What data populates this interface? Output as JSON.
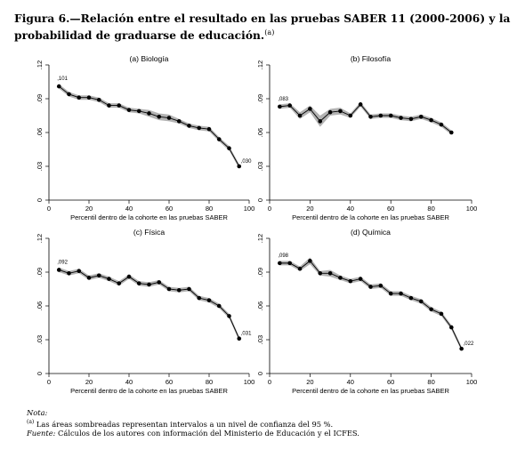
{
  "figure": {
    "title_main": "Figura 6.—Relación entre el resultado en las pruebas SABER 11 (2000-2006) y la probabilidad de graduarse de educación.",
    "title_note_ref": "(a)"
  },
  "notes": {
    "nota_label": "Nota:",
    "note_ref": "(a)",
    "note_text": "Las áreas sombreadas representan intervalos a un nivel de confianza del 95 %.",
    "fuente_label": "Fuente:",
    "fuente_text": "Cálculos de los autores con información del Ministerio de Educación y el ICFES."
  },
  "chart_data": [
    {
      "type": "line",
      "title": "(a) Biología",
      "xlabel": "Percentil dentro de la cohorte en las pruebas SABER",
      "ylabel": "",
      "xlim": [
        0,
        100
      ],
      "ylim": [
        0,
        0.12
      ],
      "xticks": [
        "0",
        "20",
        "40",
        "60",
        "80",
        "100"
      ],
      "yticks": [
        "0",
        ".03",
        ".06",
        ".09",
        ".12"
      ],
      "x": [
        5,
        10,
        15,
        20,
        25,
        30,
        35,
        40,
        45,
        50,
        55,
        60,
        65,
        70,
        75,
        80,
        85,
        90,
        95
      ],
      "values": [
        0.101,
        0.094,
        0.091,
        0.091,
        0.089,
        0.084,
        0.084,
        0.08,
        0.079,
        0.077,
        0.074,
        0.073,
        0.07,
        0.066,
        0.064,
        0.063,
        0.054,
        0.046,
        0.03
      ],
      "ci_width": [
        0.002,
        0.002,
        0.002,
        0.002,
        0.002,
        0.002,
        0.002,
        0.002,
        0.002,
        0.003,
        0.003,
        0.003,
        0.002,
        0.002,
        0.002,
        0.002,
        0.002,
        0.002,
        0.002
      ],
      "annotations": [
        {
          "x": 5,
          "y": 0.101,
          "text": ",101",
          "pos": "above"
        },
        {
          "x": 95,
          "y": 0.03,
          "text": ",030",
          "pos": "right"
        }
      ]
    },
    {
      "type": "line",
      "title": "(b) Filosofía",
      "xlabel": "Percentil dentro de la cohorte en las pruebas SABER",
      "ylabel": "",
      "xlim": [
        0,
        100
      ],
      "ylim": [
        0,
        0.12
      ],
      "xticks": [
        "0",
        "20",
        "40",
        "60",
        "80",
        "100"
      ],
      "yticks": [
        "0",
        ".03",
        ".06",
        ".09",
        ".12"
      ],
      "x": [
        5,
        10,
        15,
        20,
        25,
        30,
        35,
        40,
        45,
        50,
        55,
        60,
        65,
        70,
        75,
        80,
        85,
        90
      ],
      "values": [
        0.083,
        0.084,
        0.075,
        0.081,
        0.07,
        0.078,
        0.079,
        0.075,
        0.085,
        0.074,
        0.075,
        0.075,
        0.073,
        0.072,
        0.074,
        0.071,
        0.067,
        0.06
      ],
      "ci_width": [
        0.002,
        0.002,
        0.003,
        0.003,
        0.005,
        0.003,
        0.003,
        0.002,
        0.002,
        0.002,
        0.002,
        0.002,
        0.002,
        0.002,
        0.002,
        0.002,
        0.002,
        0.002
      ],
      "annotations": [
        {
          "x": 5,
          "y": 0.083,
          "text": ",083",
          "pos": "above"
        }
      ]
    },
    {
      "type": "line",
      "title": "(c) Física",
      "xlabel": "Percentil dentro de la cohorte en las pruebas SABER",
      "ylabel": "",
      "xlim": [
        0,
        100
      ],
      "ylim": [
        0,
        0.12
      ],
      "xticks": [
        "0",
        "20",
        "40",
        "60",
        "80",
        "100"
      ],
      "yticks": [
        "0",
        ".03",
        ".06",
        ".09",
        ".12"
      ],
      "x": [
        5,
        10,
        15,
        20,
        25,
        30,
        35,
        40,
        45,
        50,
        55,
        60,
        65,
        70,
        75,
        80,
        85,
        90,
        95
      ],
      "values": [
        0.092,
        0.089,
        0.091,
        0.085,
        0.087,
        0.084,
        0.08,
        0.086,
        0.08,
        0.079,
        0.081,
        0.075,
        0.074,
        0.075,
        0.067,
        0.065,
        0.06,
        0.051,
        0.031
      ],
      "ci_width": [
        0.002,
        0.002,
        0.002,
        0.002,
        0.002,
        0.002,
        0.002,
        0.002,
        0.002,
        0.002,
        0.002,
        0.002,
        0.002,
        0.002,
        0.002,
        0.002,
        0.002,
        0.002,
        0.002
      ],
      "annotations": [
        {
          "x": 5,
          "y": 0.092,
          "text": ",092",
          "pos": "above"
        },
        {
          "x": 95,
          "y": 0.031,
          "text": ",031",
          "pos": "right"
        }
      ]
    },
    {
      "type": "line",
      "title": "(d) Química",
      "xlabel": "Percentil dentro de la cohorte en las pruebas SABER",
      "ylabel": "",
      "xlim": [
        0,
        100
      ],
      "ylim": [
        0,
        0.12
      ],
      "xticks": [
        "0",
        "20",
        "40",
        "60",
        "80",
        "100"
      ],
      "yticks": [
        "0",
        ".03",
        ".06",
        ".09",
        ".12"
      ],
      "x": [
        5,
        10,
        15,
        20,
        25,
        30,
        35,
        40,
        45,
        50,
        55,
        60,
        65,
        70,
        75,
        80,
        85,
        90,
        95
      ],
      "values": [
        0.098,
        0.098,
        0.093,
        0.1,
        0.089,
        0.089,
        0.085,
        0.082,
        0.084,
        0.077,
        0.078,
        0.071,
        0.071,
        0.067,
        0.064,
        0.057,
        0.053,
        0.041,
        0.022
      ],
      "ci_width": [
        0.002,
        0.002,
        0.002,
        0.003,
        0.002,
        0.003,
        0.002,
        0.002,
        0.002,
        0.002,
        0.002,
        0.002,
        0.002,
        0.002,
        0.002,
        0.002,
        0.002,
        0.002,
        0.002
      ],
      "annotations": [
        {
          "x": 5,
          "y": 0.098,
          "text": ",098",
          "pos": "above"
        },
        {
          "x": 95,
          "y": 0.022,
          "text": ",022",
          "pos": "right"
        }
      ]
    }
  ]
}
